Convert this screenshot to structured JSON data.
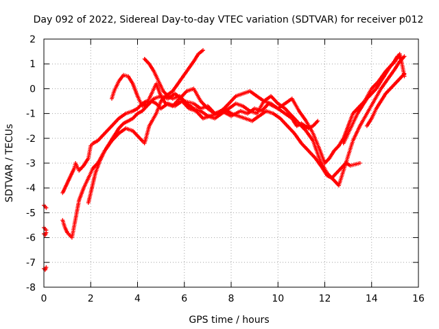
{
  "chart_data": {
    "type": "scatter",
    "title": "Day 092 of 2022, Sidereal Day-to-day VTEC variation (SDTVAR) for receiver p012",
    "xlabel": "GPS time / hours",
    "ylabel": "SDTVAR / TECUs",
    "xlim": [
      0,
      16
    ],
    "ylim": [
      -8,
      2
    ],
    "xticks": [
      0,
      2,
      4,
      6,
      8,
      10,
      12,
      14,
      16
    ],
    "yticks": [
      -8,
      -7,
      -6,
      -5,
      -4,
      -3,
      -2,
      -1,
      0,
      1,
      2
    ],
    "grid": true,
    "marker": "+",
    "color": "#ff0000",
    "traces": [
      {
        "x": [
          0.0,
          0.05,
          0.1
        ],
        "y": [
          -7.25,
          -7.3,
          -7.2
        ]
      },
      {
        "x": [
          0.0,
          0.05,
          0.1
        ],
        "y": [
          -5.85,
          -5.9,
          -5.8
        ]
      },
      {
        "x": [
          0.0,
          0.05,
          0.1
        ],
        "y": [
          -5.6,
          -5.65,
          -5.7
        ]
      },
      {
        "x": [
          0.0,
          0.05,
          0.1
        ],
        "y": [
          -4.7,
          -4.75,
          -4.8
        ]
      },
      {
        "x": [
          0.8,
          0.9,
          1.0,
          1.1,
          1.2,
          1.3,
          1.35,
          1.5,
          1.7,
          1.9,
          2.0,
          2.1,
          2.3,
          2.5,
          2.7,
          2.9,
          3.2,
          3.5,
          3.8,
          4.0,
          4.2,
          4.4,
          4.5,
          4.7,
          5.0,
          5.3,
          5.6,
          6.0,
          6.4,
          6.7,
          7.0,
          7.3,
          7.6,
          8.0,
          8.4,
          8.7,
          9.0,
          9.3,
          9.6,
          10.0,
          10.3,
          10.6,
          10.8,
          11.0,
          11.3,
          11.5,
          11.7
        ],
        "y": [
          -4.2,
          -4.0,
          -3.8,
          -3.6,
          -3.4,
          -3.2,
          -3.0,
          -3.3,
          -3.1,
          -2.8,
          -2.3,
          -2.2,
          -2.1,
          -1.9,
          -1.7,
          -1.5,
          -1.2,
          -1.0,
          -0.9,
          -0.8,
          -0.6,
          -0.5,
          -0.6,
          -0.4,
          -0.3,
          -0.4,
          -0.2,
          -0.5,
          -0.6,
          -0.8,
          -0.7,
          -1.0,
          -0.9,
          -1.1,
          -0.9,
          -1.0,
          -0.8,
          -0.9,
          -0.6,
          -0.8,
          -1.0,
          -1.2,
          -1.5,
          -1.4,
          -1.6,
          -1.5,
          -1.3
        ]
      },
      {
        "x": [
          0.8,
          0.9,
          1.0,
          1.1,
          1.2,
          1.3,
          1.5,
          1.7,
          1.9,
          2.1,
          2.3,
          2.6,
          2.9,
          3.2,
          3.5,
          3.8,
          4.0,
          4.2,
          4.3,
          4.5,
          4.8,
          5.0,
          5.2,
          5.5,
          5.8,
          6.1,
          6.4,
          6.6,
          6.8
        ],
        "y": [
          -5.3,
          -5.6,
          -5.8,
          -5.9,
          -6.0,
          -5.5,
          -4.5,
          -4.0,
          -3.6,
          -3.2,
          -3.0,
          -2.5,
          -2.1,
          -1.8,
          -1.6,
          -1.7,
          -1.9,
          -2.1,
          -2.2,
          -1.5,
          -1.0,
          -0.5,
          -0.3,
          -0.1,
          0.3,
          0.7,
          1.1,
          1.4,
          1.55
        ]
      },
      {
        "x": [
          1.9,
          2.0,
          2.1,
          2.2,
          2.4,
          2.6,
          2.8,
          3.0,
          3.2,
          3.4,
          3.6,
          3.8,
          4.0,
          4.2,
          4.4,
          4.6,
          4.8,
          5.0,
          5.3,
          5.6,
          5.9,
          6.2,
          6.5,
          6.8,
          7.1,
          7.4,
          7.7,
          8.0,
          8.3,
          8.6,
          8.9,
          9.2,
          9.5,
          9.8,
          10.1,
          10.4,
          10.7,
          11.0,
          11.3,
          11.6,
          11.9,
          12.1,
          12.3,
          12.5,
          12.7,
          12.9,
          13.1,
          13.3,
          13.5
        ],
        "y": [
          -4.6,
          -4.2,
          -3.8,
          -3.4,
          -2.9,
          -2.5,
          -2.2,
          -1.9,
          -1.6,
          -1.4,
          -1.3,
          -1.2,
          -1.0,
          -0.9,
          -0.7,
          -0.5,
          -0.6,
          -0.8,
          -0.6,
          -0.7,
          -0.5,
          -0.8,
          -0.9,
          -1.2,
          -1.1,
          -1.0,
          -0.8,
          -1.0,
          -1.1,
          -1.2,
          -1.3,
          -1.1,
          -0.9,
          -1.0,
          -1.2,
          -1.5,
          -1.8,
          -2.2,
          -2.5,
          -2.8,
          -3.2,
          -3.5,
          -3.6,
          -3.4,
          -3.2,
          -3.0,
          -3.1,
          -3.05,
          -3.0
        ]
      },
      {
        "x": [
          2.9,
          3.0,
          3.2,
          3.4,
          3.6,
          3.8,
          4.0,
          4.2,
          4.4,
          4.6,
          4.8,
          5.0,
          5.2,
          5.5,
          5.8,
          6.1,
          6.4,
          6.7,
          7.0,
          7.3,
          7.6,
          7.9,
          8.2,
          8.5,
          8.8,
          9.1,
          9.4,
          9.7,
          10.0,
          10.3,
          10.6,
          10.9,
          11.2,
          11.5,
          11.8,
          12.0,
          12.2,
          12.4,
          12.6,
          12.8,
          13.0,
          13.2,
          13.4,
          13.7,
          14.0,
          14.3,
          14.6,
          14.9,
          15.1,
          15.3
        ],
        "y": [
          -0.4,
          -0.1,
          0.3,
          0.55,
          0.5,
          0.2,
          -0.3,
          -0.7,
          -0.6,
          -0.2,
          0.2,
          -0.3,
          -0.6,
          -0.7,
          -0.4,
          -0.1,
          0.0,
          -0.5,
          -0.8,
          -1.0,
          -0.9,
          -0.6,
          -0.3,
          -0.2,
          -0.1,
          -0.3,
          -0.5,
          -0.6,
          -0.8,
          -0.6,
          -0.4,
          -0.9,
          -1.3,
          -1.8,
          -2.5,
          -3.0,
          -2.8,
          -2.5,
          -2.3,
          -2.0,
          -1.5,
          -1.0,
          -0.8,
          -0.5,
          0.0,
          0.3,
          0.7,
          1.0,
          1.3,
          1.2
        ]
      },
      {
        "x": [
          4.3,
          4.5,
          4.7,
          4.9,
          5.1,
          5.3,
          5.5,
          5.8,
          6.1,
          6.4,
          6.7,
          7.0,
          7.3,
          7.6,
          7.9,
          8.2,
          8.5,
          8.8,
          9.1,
          9.4,
          9.7,
          10.0,
          10.3,
          10.6,
          10.9,
          11.2,
          11.5,
          11.8,
          12.1,
          12.4,
          12.6,
          12.8,
          13.0,
          13.2,
          13.5,
          13.8,
          14.1,
          14.4,
          14.7,
          15.0,
          15.2,
          15.4
        ],
        "y": [
          1.2,
          1.0,
          0.7,
          0.3,
          -0.1,
          -0.3,
          -0.4,
          -0.3,
          -0.6,
          -0.8,
          -0.9,
          -1.1,
          -1.2,
          -1.0,
          -0.8,
          -0.6,
          -0.7,
          -0.9,
          -1.0,
          -0.5,
          -0.3,
          -0.6,
          -0.8,
          -1.1,
          -1.4,
          -1.7,
          -2.1,
          -2.9,
          -3.4,
          -3.7,
          -3.9,
          -3.3,
          -2.7,
          -2.1,
          -1.5,
          -1.0,
          -0.5,
          0.0,
          0.4,
          0.8,
          1.1,
          1.3
        ]
      },
      {
        "x": [
          12.8,
          13.0,
          13.2,
          13.4,
          13.6,
          13.8,
          14.0,
          14.2,
          14.4,
          14.6,
          14.8,
          15.0,
          15.2,
          15.3,
          15.4
        ],
        "y": [
          -2.2,
          -1.8,
          -1.4,
          -1.0,
          -0.7,
          -0.4,
          -0.2,
          0.0,
          0.3,
          0.6,
          0.9,
          1.1,
          1.4,
          1.0,
          0.5
        ]
      },
      {
        "x": [
          13.8,
          14.0,
          14.2,
          14.4,
          14.6,
          14.8,
          15.0,
          15.2,
          15.4
        ],
        "y": [
          -1.5,
          -1.2,
          -0.8,
          -0.5,
          -0.2,
          0.0,
          0.2,
          0.4,
          0.6
        ]
      }
    ]
  }
}
